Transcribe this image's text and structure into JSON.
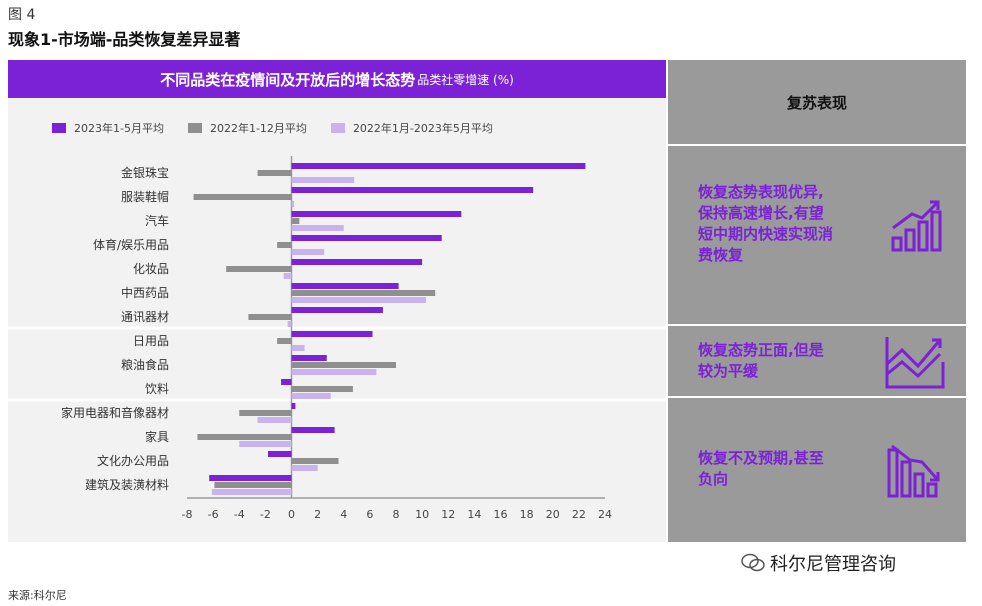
{
  "figure": {
    "label": "图 4",
    "title": "现象1-市场端-品类恢复差异显著"
  },
  "chart_header": {
    "title": "不同品类在疫情间及开放后的增长态势",
    "subtitle": "品类社零增速 (%)"
  },
  "colors": {
    "series1": "#7b22d6",
    "series2": "#8f8f8f",
    "series3": "#c9b3ef",
    "header": "#7b22d6",
    "side": "#9a9a9a"
  },
  "chart_data": {
    "type": "bar",
    "orientation": "horizontal",
    "title": "不同品类在疫情间及开放后的增长态势",
    "unit": "品类社零增速 (%)",
    "categories": [
      "金银珠宝",
      "服装鞋帽",
      "汽车",
      "体育/娱乐用品",
      "化妆品",
      "中西药品",
      "通讯器材",
      "日用品",
      "粮油食品",
      "饮料",
      "家用电器和音像器材",
      "家具",
      "文化办公用品",
      "建筑及装潢材料"
    ],
    "series": [
      {
        "name": "2023年1-5月平均",
        "color": "#7b22d6",
        "values": [
          22.5,
          18.5,
          13.0,
          11.5,
          10.0,
          8.2,
          7.0,
          6.2,
          2.7,
          -0.8,
          0.3,
          3.3,
          -1.8,
          -6.3
        ]
      },
      {
        "name": "2022年1-12月平均",
        "color": "#8f8f8f",
        "values": [
          -2.6,
          -7.5,
          0.6,
          -1.1,
          -5.0,
          11.0,
          -3.3,
          -1.1,
          8.0,
          4.7,
          -4.0,
          -7.2,
          3.6,
          -5.9
        ]
      },
      {
        "name": "2022年1月-2023年5月平均",
        "color": "#c9b3ef",
        "values": [
          4.8,
          0.2,
          4.0,
          2.5,
          -0.6,
          10.3,
          -0.3,
          1.0,
          6.5,
          3.0,
          -2.6,
          -4.0,
          2.0,
          -6.1
        ]
      }
    ],
    "xlim": [
      -8,
      24
    ],
    "xticks": [
      -8,
      -6,
      -4,
      -2,
      0,
      2,
      4,
      6,
      8,
      10,
      12,
      14,
      16,
      18,
      20,
      22,
      24
    ],
    "legend_position": "top",
    "groups": [
      [
        "金银珠宝",
        "服装鞋帽",
        "汽车",
        "体育/娱乐用品",
        "化妆品",
        "中西药品",
        "通讯器材"
      ],
      [
        "日用品",
        "粮油食品",
        "饮料"
      ],
      [
        "家用电器和音像器材",
        "家具",
        "文化办公用品",
        "建筑及装潢材料"
      ]
    ]
  },
  "side_panel": {
    "header": "复苏表现",
    "boxes": [
      {
        "lines": [
          "恢复态势表现优异,",
          "保持高速增长,有望",
          "短中期内快速实现消",
          "费恢复"
        ],
        "icon": "bar-chart-up-icon"
      },
      {
        "lines": [
          "恢复态势正面,但是",
          "较为平缓"
        ],
        "icon": "line-chart-up-icon"
      },
      {
        "lines": [
          "恢复不及预期,甚至",
          "负向"
        ],
        "icon": "bar-chart-down-icon"
      }
    ]
  },
  "source": "来源:科尔尼",
  "watermark": "科尔尼管理咨询"
}
